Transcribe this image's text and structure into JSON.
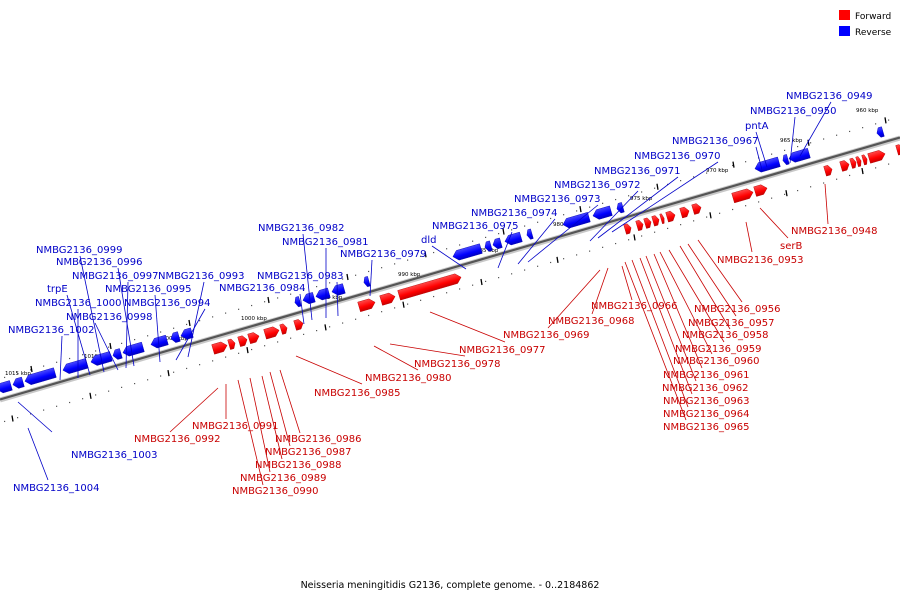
{
  "legend": {
    "forward_label": "Forward",
    "reverse_label": "Reverse",
    "forward_color": "#ff0000",
    "reverse_color": "#0000ff"
  },
  "caption": "Neisseria meningitidis G2136, complete genome. - 0..2184862",
  "scale_ticks": [
    "960 kbp",
    "965 kbp",
    "970 kbp",
    "975 kbp",
    "980 kbp",
    "985 kbp",
    "990 kbp",
    "995 kbp",
    "1000 kbp",
    "1005 kbp",
    "1010 kbp",
    "1015 kbp"
  ],
  "reverse_genes": [
    "NMBG2136_0949",
    "NMBG2136_0950",
    "pntA",
    "NMBG2136_0967",
    "NMBG2136_0970",
    "NMBG2136_0971",
    "NMBG2136_0972",
    "NMBG2136_0973",
    "NMBG2136_0974",
    "NMBG2136_0975",
    "dld",
    "NMBG2136_0979",
    "NMBG2136_0982",
    "NMBG2136_0981",
    "NMBG2136_0983",
    "NMBG2136_0984",
    "NMBG2136_0993",
    "NMBG2136_0994",
    "NMBG2136_0995",
    "NMBG2136_0996",
    "NMBG2136_0997",
    "NMBG2136_0998",
    "NMBG2136_0999",
    "trpE",
    "NMBG2136_1000",
    "NMBG2136_1002",
    "NMBG2136_1003",
    "NMBG2136_1004"
  ],
  "forward_genes": [
    "NMBG2136_0948",
    "serB",
    "NMBG2136_0953",
    "NMBG2136_0956",
    "NMBG2136_0957",
    "NMBG2136_0958",
    "NMBG2136_0959",
    "NMBG2136_0960",
    "NMBG2136_0961",
    "NMBG2136_0962",
    "NMBG2136_0963",
    "NMBG2136_0964",
    "NMBG2136_0965",
    "NMBG2136_0966",
    "NMBG2136_0968",
    "NMBG2136_0969",
    "NMBG2136_0977",
    "NMBG2136_0978",
    "NMBG2136_0980",
    "NMBG2136_0985",
    "NMBG2136_0986",
    "NMBG2136_0987",
    "NMBG2136_0988",
    "NMBG2136_0989",
    "NMBG2136_0990",
    "NMBG2136_0991",
    "NMBG2136_0992"
  ]
}
